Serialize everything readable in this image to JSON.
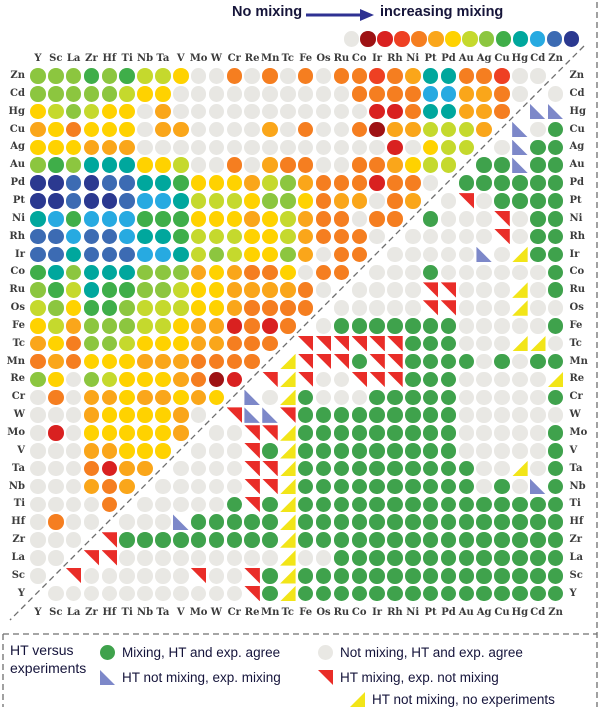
{
  "top_legend": {
    "no_mixing_label": "No mixing",
    "increasing_mixing_label": "increasing mixing"
  },
  "bottom_legend": {
    "title_line1": "HT versus",
    "title_line2": "experiments",
    "items": [
      {
        "symbol": "green-circle",
        "label": "Mixing, HT and exp. agree"
      },
      {
        "symbol": "gray-circle",
        "label": "Not mixing, HT and exp. agree"
      },
      {
        "symbol": "blue-triangle",
        "label": "HT not mixing, exp. mixing"
      },
      {
        "symbol": "red-triangle",
        "label": "HT mixing, exp. not mixing"
      },
      {
        "symbol": "yellow-triangle",
        "label": "HT not mixing, no experiments"
      }
    ]
  },
  "chart_data": {
    "type": "heatmap",
    "columns": [
      "Y",
      "Sc",
      "La",
      "Zr",
      "Hf",
      "Ti",
      "Nb",
      "Ta",
      "V",
      "Mo",
      "W",
      "Cr",
      "Re",
      "Mn",
      "Tc",
      "Fe",
      "Os",
      "Ru",
      "Co",
      "Ir",
      "Rh",
      "Ni",
      "Pt",
      "Pd",
      "Au",
      "Ag",
      "Cu",
      "Hg",
      "Cd",
      "Zn"
    ],
    "rows": [
      "Zn",
      "Cd",
      "Hg",
      "Cu",
      "Ag",
      "Au",
      "Pd",
      "Pt",
      "Ni",
      "Rh",
      "Ir",
      "Co",
      "Ru",
      "Os",
      "Fe",
      "Tc",
      "Mn",
      "Re",
      "Cr",
      "W",
      "Mo",
      "V",
      "Ta",
      "Nb",
      "Ti",
      "Hf",
      "Zr",
      "La",
      "Sc",
      "Y"
    ],
    "color_scale": [
      "#e8e7e3",
      "#9e1214",
      "#d92120",
      "#ee4023",
      "#f57e20",
      "#faa61a",
      "#ffd200",
      "#c5d92d",
      "#8cc63f",
      "#3fae49",
      "#00a79d",
      "#27aae1",
      "#3c6bb3",
      "#2b3990"
    ],
    "color_scale_meaning": {
      "first": "No mixing",
      "last": "increasing mixing"
    },
    "upper_triangle_mixing": [
      "8889897760040404044345aa44300",
      "8888876600000000004444bb5540",
      "6787660500000000000224aa554",
      "56466605500005040041557775",
      "6665550000000000000020677",
      "898aaa667004054400445677",
      "ddcdccaa966657854442440",
      "ddcddcbba7776886455045",
      "ab9bbb999666567544044",
      "ccbccbaa977766754440",
      "ccacccbba7876685044",
      "9a8aaa888565446044",
      "897a9988766555540",
      "7869987776654444",
      "675888776552424",
      "56488766655444",
      "4546665554444",
      "860876665412",
      "04055655656",
      "0005666650",
      "020666665",
      "00055666",
      "0004255",
      "000545",
      "00004",
      "0400",
      "000",
      "00",
      "0",
      ""
    ],
    "lower_triangle_agreement": [
      "",
      "N",
      "BB",
      "BNG",
      "NBGG",
      "GGBGG",
      "GGGGGG",
      "NRNGGGG",
      "GNNNRNGG",
      "NNNNNRNGG",
      "NNNNNBNYGG",
      "NNNGNNNNNNG",
      "NNNNRRNNNYNG",
      "NNNNNRRNNNYNN",
      "NGGGGGGGNNNNNG",
      "RRRRRRGGGNNNYYN",
      "YRRRGRRGGGGNGNGG",
      "RYRNNRRRGGGNNNNNY",
      "BNYGNNNGGGGGNNNNNG",
      "RBBRGGGGGGGGGNNNNNN",
      "NNRRYGGGGGGGGGNNNNNG",
      "NNNRGYGGGGGGGGGNNNNNG",
      "NNNNRRYGGGGGGGGGGNNYNG",
      "NNNNNRRYGGGGGGGGGGNGNBG",
      "NNNNNGRGYGGGGGGGGGGGGGGG",
      "NNNBGGGGGYGGGGGGGGGGGGGGG",
      "RGGGGGGGGGYGGGGGGGGGGGGGGG",
      "RRNNNNNNNNNYNNGGGGGGGGGGGGG",
      "RNNNNNNRNNRGYGGGGGGGGGGGGGGG",
      "NNNNNNNNNNNRGYGGGGGGGGGGGGGGG"
    ],
    "agreement_style": {
      "G": {
        "shape": "circle",
        "color": "#3fa24c",
        "name": "agree-mixing-cell"
      },
      "N": {
        "shape": "circle",
        "color": "#e9e8e4",
        "name": "agree-not-mixing-cell"
      },
      "B": {
        "shape": "triangle",
        "color": "#7d88c9",
        "clip": "polygon(0% 0%, 100% 100%, 0% 100%)",
        "name": "ht-not-mixing-exp-mixing-cell"
      },
      "R": {
        "shape": "triangle",
        "color": "#e92d28",
        "clip": "polygon(0% 0%, 100% 0%, 100% 100%)",
        "name": "ht-mixing-exp-not-mixing-cell"
      },
      "Y": {
        "shape": "triangle",
        "color": "#f2e518",
        "clip": "polygon(100% 0%, 100% 100%, 0% 100%)",
        "name": "ht-not-mixing-no-experiments-cell"
      }
    }
  }
}
